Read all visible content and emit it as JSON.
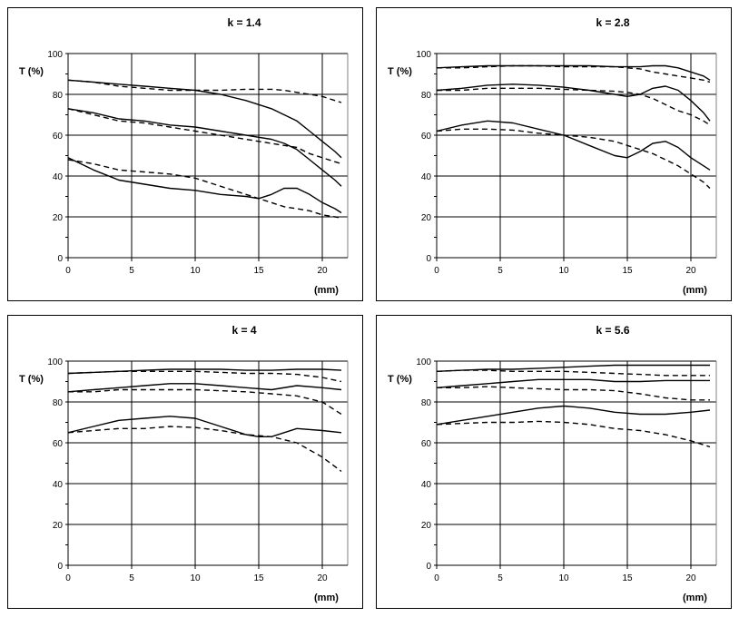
{
  "chart_data": [
    {
      "type": "line",
      "title": "k = 1.4",
      "ylabel": "T (%)",
      "xlabel": "(mm)",
      "xlim": [
        0,
        22
      ],
      "ylim": [
        0,
        100
      ],
      "xticks": [
        0,
        5,
        10,
        15,
        20
      ],
      "yticks": [
        0,
        20,
        40,
        60,
        80,
        100
      ],
      "grid": true,
      "series": [
        {
          "style": "solid",
          "x": [
            0,
            2,
            4,
            6,
            8,
            10,
            12,
            14,
            15,
            16,
            17,
            18,
            19,
            20,
            21,
            21.5
          ],
          "y": [
            87,
            86,
            85,
            84,
            83,
            82,
            80,
            77,
            75,
            73,
            70,
            67,
            62,
            57,
            52,
            49
          ]
        },
        {
          "style": "dashed",
          "x": [
            0,
            2,
            4,
            6,
            8,
            10,
            12,
            14,
            15,
            16,
            17,
            18,
            19,
            20,
            21,
            21.5
          ],
          "y": [
            87,
            86,
            84,
            83,
            82,
            82,
            82,
            82.5,
            82.5,
            82.5,
            82,
            81,
            80,
            79,
            77,
            76
          ]
        },
        {
          "style": "solid",
          "x": [
            0,
            2,
            4,
            6,
            8,
            10,
            12,
            14,
            15,
            16,
            17,
            18,
            19,
            20,
            21,
            21.5
          ],
          "y": [
            73,
            71,
            68,
            67,
            65,
            64,
            62,
            60,
            59,
            58,
            56,
            53,
            48,
            43,
            38,
            35
          ]
        },
        {
          "style": "dashed",
          "x": [
            0,
            2,
            4,
            6,
            8,
            10,
            12,
            14,
            15,
            16,
            17,
            18,
            19,
            20,
            21,
            21.5
          ],
          "y": [
            73,
            70,
            67,
            66,
            64,
            62,
            60,
            58,
            57,
            56,
            55,
            54,
            51,
            49,
            47,
            46
          ]
        },
        {
          "style": "solid",
          "x": [
            0,
            2,
            4,
            6,
            8,
            10,
            12,
            14,
            15,
            16,
            17,
            18,
            19,
            20,
            21,
            21.5
          ],
          "y": [
            49,
            43,
            38,
            36,
            34,
            33,
            31,
            30,
            29,
            31,
            34,
            34,
            31,
            27,
            24,
            22
          ]
        },
        {
          "style": "dashed",
          "x": [
            0,
            2,
            4,
            6,
            8,
            10,
            12,
            14,
            15,
            16,
            17,
            18,
            19,
            20,
            21,
            21.5
          ],
          "y": [
            48,
            46,
            43,
            42,
            41,
            39,
            35,
            31,
            29,
            27,
            25,
            24,
            23,
            21,
            20,
            19.5
          ]
        }
      ]
    },
    {
      "type": "line",
      "title": "k = 2.8",
      "ylabel": "T (%)",
      "xlabel": "(mm)",
      "xlim": [
        0,
        22
      ],
      "ylim": [
        0,
        100
      ],
      "xticks": [
        0,
        5,
        10,
        15,
        20
      ],
      "yticks": [
        0,
        20,
        40,
        60,
        80,
        100
      ],
      "grid": true,
      "series": [
        {
          "style": "solid",
          "x": [
            0,
            2,
            4,
            6,
            8,
            10,
            12,
            14,
            15,
            16,
            17,
            18,
            19,
            20,
            21,
            21.5
          ],
          "y": [
            93,
            93.5,
            94,
            94,
            94,
            94,
            94,
            93.5,
            93.5,
            93.5,
            94,
            94,
            93,
            91,
            89,
            87
          ]
        },
        {
          "style": "dashed",
          "x": [
            0,
            2,
            4,
            6,
            8,
            10,
            12,
            14,
            15,
            16,
            17,
            18,
            19,
            20,
            21,
            21.5
          ],
          "y": [
            93,
            93,
            93.5,
            94,
            94,
            93.5,
            93.5,
            93.5,
            93,
            92.5,
            91,
            90,
            89,
            88,
            87,
            86
          ]
        },
        {
          "style": "solid",
          "x": [
            0,
            2,
            4,
            6,
            8,
            10,
            12,
            14,
            15,
            16,
            17,
            18,
            19,
            20,
            21,
            21.5
          ],
          "y": [
            82,
            83,
            84.5,
            85,
            84.5,
            83.5,
            82,
            80,
            79,
            80,
            83,
            84,
            82,
            77,
            71,
            67
          ]
        },
        {
          "style": "dashed",
          "x": [
            0,
            2,
            4,
            6,
            8,
            10,
            12,
            14,
            15,
            16,
            17,
            18,
            19,
            20,
            21,
            21.5
          ],
          "y": [
            82,
            82,
            83,
            83,
            83,
            82.5,
            82,
            81.5,
            81,
            80,
            78,
            75,
            72,
            70,
            67,
            65
          ]
        },
        {
          "style": "solid",
          "x": [
            0,
            2,
            4,
            6,
            8,
            10,
            12,
            14,
            15,
            16,
            17,
            18,
            19,
            20,
            21,
            21.5
          ],
          "y": [
            62,
            65,
            67,
            66,
            63,
            60,
            55,
            50,
            49,
            52,
            56,
            57,
            54,
            49,
            45,
            43
          ]
        },
        {
          "style": "dashed",
          "x": [
            0,
            2,
            4,
            6,
            8,
            10,
            12,
            14,
            15,
            16,
            17,
            18,
            19,
            20,
            21,
            21.5
          ],
          "y": [
            62,
            63,
            63,
            62.5,
            61,
            60,
            59,
            57,
            55,
            53,
            51,
            48,
            45,
            41,
            37,
            34
          ]
        }
      ]
    },
    {
      "type": "line",
      "title": "k = 4",
      "ylabel": "T (%)",
      "xlabel": "(mm)",
      "xlim": [
        0,
        22
      ],
      "ylim": [
        0,
        100
      ],
      "xticks": [
        0,
        5,
        10,
        15,
        20
      ],
      "yticks": [
        0,
        20,
        40,
        60,
        80,
        100
      ],
      "grid": true,
      "series": [
        {
          "style": "solid",
          "x": [
            0,
            2,
            4,
            6,
            8,
            10,
            12,
            14,
            16,
            18,
            20,
            21.5
          ],
          "y": [
            94,
            94.5,
            95,
            95.5,
            96,
            96,
            96,
            95.5,
            95.5,
            96,
            96,
            95.5
          ]
        },
        {
          "style": "dashed",
          "x": [
            0,
            2,
            4,
            6,
            8,
            10,
            12,
            14,
            16,
            18,
            20,
            21.5
          ],
          "y": [
            94,
            94.5,
            95,
            95,
            95,
            95,
            94.5,
            94,
            94,
            93.5,
            92,
            90
          ]
        },
        {
          "style": "solid",
          "x": [
            0,
            2,
            4,
            6,
            8,
            10,
            12,
            14,
            16,
            18,
            20,
            21.5
          ],
          "y": [
            85,
            86,
            87,
            88,
            89,
            89,
            88,
            87,
            86,
            88,
            87,
            86
          ]
        },
        {
          "style": "dashed",
          "x": [
            0,
            2,
            4,
            6,
            8,
            10,
            12,
            14,
            16,
            18,
            20,
            21.5
          ],
          "y": [
            85,
            85,
            86,
            86,
            86,
            86,
            85.5,
            85,
            84,
            83,
            80,
            74
          ]
        },
        {
          "style": "solid",
          "x": [
            0,
            2,
            4,
            6,
            8,
            10,
            12,
            14,
            15,
            16,
            17,
            18,
            20,
            21.5
          ],
          "y": [
            65,
            68,
            71,
            72,
            73,
            72,
            68,
            64,
            63,
            63,
            65,
            67,
            66,
            65
          ]
        },
        {
          "style": "dashed",
          "x": [
            0,
            2,
            4,
            6,
            8,
            10,
            12,
            14,
            16,
            18,
            20,
            21.5
          ],
          "y": [
            65,
            66,
            67,
            67,
            68,
            67.5,
            66,
            64,
            63,
            60,
            53,
            46
          ]
        }
      ]
    },
    {
      "type": "line",
      "title": "k = 5.6",
      "ylabel": "T (%)",
      "xlabel": "(mm)",
      "xlim": [
        0,
        22
      ],
      "ylim": [
        0,
        100
      ],
      "xticks": [
        0,
        5,
        10,
        15,
        20
      ],
      "yticks": [
        0,
        20,
        40,
        60,
        80,
        100
      ],
      "grid": true,
      "series": [
        {
          "style": "solid",
          "x": [
            0,
            2,
            4,
            6,
            8,
            10,
            12,
            14,
            16,
            18,
            20,
            21.5
          ],
          "y": [
            95,
            95.5,
            96,
            96,
            96.5,
            97,
            97.5,
            98,
            98,
            98,
            98,
            98
          ]
        },
        {
          "style": "dashed",
          "x": [
            0,
            2,
            4,
            6,
            8,
            10,
            12,
            14,
            16,
            18,
            20,
            21.5
          ],
          "y": [
            95,
            95.5,
            95.5,
            95,
            95,
            95,
            94.5,
            94,
            93.5,
            93,
            93,
            93
          ]
        },
        {
          "style": "solid",
          "x": [
            0,
            2,
            4,
            6,
            8,
            10,
            12,
            14,
            16,
            18,
            20,
            21.5
          ],
          "y": [
            87,
            88,
            89,
            90,
            91,
            91,
            91,
            90,
            90,
            90.5,
            90.5,
            90.5
          ]
        },
        {
          "style": "dashed",
          "x": [
            0,
            2,
            4,
            6,
            8,
            10,
            12,
            14,
            16,
            18,
            20,
            21.5
          ],
          "y": [
            87,
            87,
            87.5,
            87,
            86.5,
            86,
            86,
            85.5,
            84,
            82,
            81,
            81
          ]
        },
        {
          "style": "solid",
          "x": [
            0,
            2,
            4,
            6,
            8,
            10,
            12,
            14,
            16,
            18,
            20,
            21.5
          ],
          "y": [
            69,
            71,
            73,
            75,
            77,
            78,
            77,
            75,
            74,
            74,
            75,
            76
          ]
        },
        {
          "style": "dashed",
          "x": [
            0,
            2,
            4,
            6,
            8,
            10,
            12,
            14,
            16,
            18,
            20,
            21.5
          ],
          "y": [
            69,
            69.5,
            70,
            70,
            70.5,
            70,
            69,
            67,
            66,
            64,
            61,
            58
          ]
        }
      ]
    }
  ]
}
